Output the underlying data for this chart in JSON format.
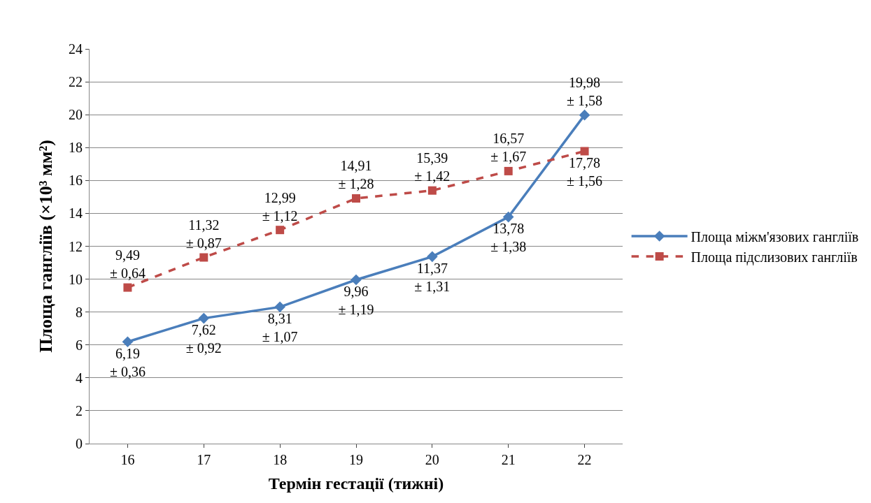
{
  "chart_data": {
    "type": "line",
    "xlabel": "Термін гестації (тижні)",
    "ylabel": "Площа гангліїв (×10³ мм²)",
    "categories": [
      "16",
      "17",
      "18",
      "19",
      "20",
      "21",
      "22"
    ],
    "series": [
      {
        "name": "Площа міжм'язових гангліїв",
        "color": "#4a7ebb",
        "marker": "diamond",
        "line_style": "solid",
        "values": [
          6.19,
          7.62,
          8.31,
          9.96,
          11.37,
          13.78,
          19.98
        ],
        "value_labels": [
          "6,19\n± 0,36",
          "7,62\n± 0,92",
          "8,31\n± 1,07",
          "9,96\n± 1,19",
          "11,37\n± 1,31",
          "13,78\n± 1,38",
          "19,98\n± 1,58"
        ]
      },
      {
        "name": "Площа підслизових гангліїв",
        "color": "#be4b48",
        "marker": "square",
        "line_style": "dashed",
        "values": [
          9.49,
          11.32,
          12.99,
          14.91,
          15.39,
          16.57,
          17.78
        ],
        "value_labels": [
          "9,49\n± 0,64",
          "11,32\n± 0,87",
          "12,99\n± 1,12",
          "14,91\n± 1,28",
          "15,39\n± 1,42",
          "16,57\n± 1,67",
          "17,78\n± 1,56"
        ]
      }
    ],
    "ylim": [
      0,
      24
    ],
    "yticks": [
      0,
      2,
      4,
      6,
      8,
      10,
      12,
      14,
      16,
      18,
      20,
      22,
      24
    ],
    "grid": "y",
    "legend": "right"
  }
}
